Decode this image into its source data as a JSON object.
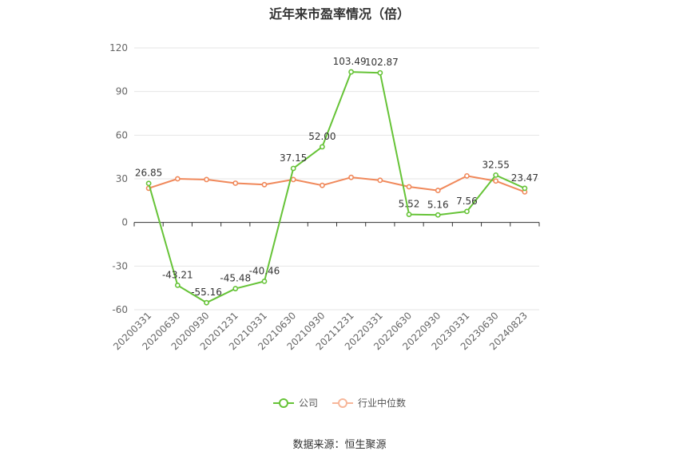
{
  "chart_data": {
    "type": "line",
    "title": "近年来市盈率情况（倍）",
    "categories": [
      "20200331",
      "20200630",
      "20200930",
      "20201231",
      "20210331",
      "20210630",
      "20210930",
      "20211231",
      "20220331",
      "20220630",
      "20220930",
      "20230331",
      "20230630",
      "20240823"
    ],
    "series": [
      {
        "name": "公司",
        "color": "#66c337",
        "values": [
          26.85,
          -43.21,
          -55.16,
          -45.48,
          -40.46,
          37.15,
          52.0,
          103.49,
          102.87,
          5.52,
          5.16,
          7.56,
          32.55,
          23.47
        ],
        "labels": [
          "26.85",
          "-43.21",
          "-55.16",
          "-45.48",
          "-40.46",
          "37.15",
          "52.00",
          "103.49",
          "102.87",
          "5.52",
          "5.16",
          "7.56",
          "32.55",
          "23.47"
        ]
      },
      {
        "name": "行业中位数",
        "color": "#f0885a",
        "values": [
          23.5,
          30.0,
          29.5,
          27.0,
          26.0,
          29.5,
          25.5,
          31.0,
          29.0,
          24.5,
          22.0,
          32.0,
          28.5,
          21.0
        ]
      }
    ],
    "yticks": [
      120,
      90,
      60,
      30,
      0,
      -30,
      -60
    ],
    "ylim": [
      -60,
      120
    ],
    "grid": true,
    "legend_position": "bottom"
  },
  "source": "数据来源：恒生聚源"
}
